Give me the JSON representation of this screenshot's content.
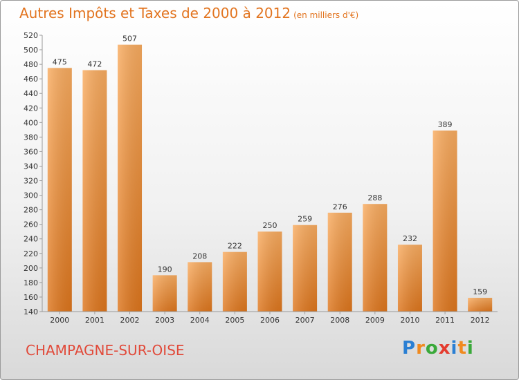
{
  "title": "Autres Impôts et Taxes de 2000 à 2012",
  "subtitle": "(en milliers d'€)",
  "commune": "CHAMPAGNE-SUR-OISE",
  "brand": {
    "text": "Proxiti",
    "colors": [
      "#2a7fd3",
      "#f08a1f",
      "#3aa93a",
      "#e43c2f",
      "#2a7fd3",
      "#f08a1f",
      "#3aa93a"
    ]
  },
  "colors": {
    "title": "#e2741f",
    "bar_light": "#f8a75a",
    "bar_dark": "#e07a22",
    "commune": "#e14a3a"
  },
  "chart_data": {
    "type": "bar",
    "categories": [
      "2000",
      "2001",
      "2002",
      "2003",
      "2004",
      "2005",
      "2006",
      "2007",
      "2008",
      "2009",
      "2010",
      "2011",
      "2012"
    ],
    "values": [
      475,
      472,
      507,
      190,
      208,
      222,
      250,
      259,
      276,
      288,
      232,
      389,
      159
    ],
    "ylim": [
      140,
      520
    ],
    "yticks": [
      140,
      160,
      180,
      200,
      220,
      240,
      260,
      280,
      300,
      320,
      340,
      360,
      380,
      400,
      420,
      440,
      460,
      480,
      500,
      520
    ],
    "grid": false
  }
}
